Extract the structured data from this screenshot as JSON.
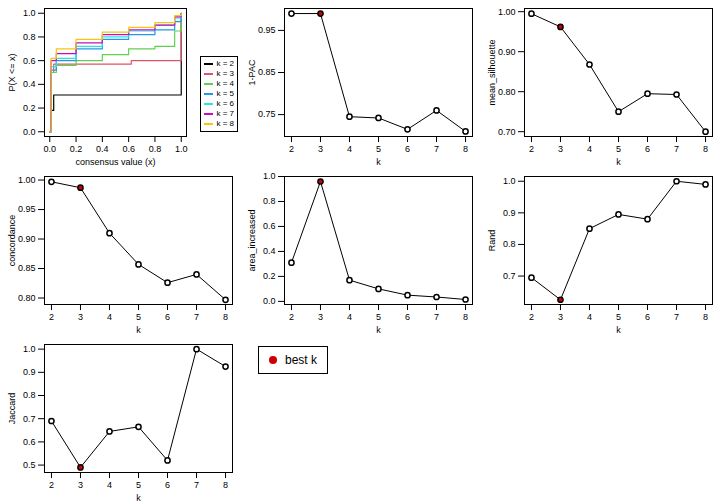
{
  "chart_data": [
    {
      "type": "line",
      "x_label": "consensus value (x)",
      "y_label": "P(X <= x)",
      "xlim": [
        -0.04,
        1.04
      ],
      "ylim": [
        -0.04,
        1.04
      ],
      "xticks": [
        {
          "value": 0,
          "label": "0.0"
        },
        0.2,
        0.4,
        0.6,
        0.8,
        {
          "value": 1,
          "label": "1.0"
        }
      ],
      "yticks": [
        {
          "value": 0,
          "label": "0.0"
        },
        0.2,
        0.4,
        0.6,
        0.8,
        {
          "value": 1,
          "label": "1.0"
        }
      ],
      "line_style": "step",
      "legend": "right",
      "series": [
        {
          "name": "k = 2",
          "color": "#000000",
          "x": [
            0,
            0.01,
            0.03,
            0.99,
            1
          ],
          "values": [
            0,
            0.18,
            0.31,
            0.31,
            1
          ]
        },
        {
          "name": "k = 3",
          "color": "#DF536B",
          "x": [
            0,
            0.01,
            0.03,
            0.6,
            0.62,
            0.99,
            1
          ],
          "values": [
            0,
            0.5,
            0.57,
            0.57,
            0.6,
            0.6,
            1
          ]
        },
        {
          "name": "k = 4",
          "color": "#61D04F",
          "x": [
            0,
            0.01,
            0.05,
            0.2,
            0.4,
            0.6,
            0.8,
            0.95,
            1
          ],
          "values": [
            0,
            0.5,
            0.56,
            0.6,
            0.65,
            0.7,
            0.72,
            0.85,
            1
          ]
        },
        {
          "name": "k = 5",
          "color": "#2297E6",
          "x": [
            0,
            0.01,
            0.05,
            0.2,
            0.4,
            0.6,
            0.8,
            0.95,
            1
          ],
          "values": [
            0,
            0.52,
            0.6,
            0.7,
            0.78,
            0.82,
            0.86,
            0.93,
            1
          ]
        },
        {
          "name": "k = 6",
          "color": "#28E2E5",
          "x": [
            0,
            0.01,
            0.05,
            0.2,
            0.4,
            0.6,
            0.8,
            0.95,
            1
          ],
          "values": [
            0,
            0.55,
            0.62,
            0.72,
            0.8,
            0.85,
            0.9,
            0.96,
            1
          ]
        },
        {
          "name": "k = 7",
          "color": "#CD0BBC",
          "x": [
            0,
            0.01,
            0.05,
            0.2,
            0.4,
            0.6,
            0.8,
            0.95,
            1
          ],
          "values": [
            0,
            0.6,
            0.66,
            0.75,
            0.82,
            0.86,
            0.9,
            0.97,
            1
          ]
        },
        {
          "name": "k = 8",
          "color": "#F5C710",
          "x": [
            0,
            0.01,
            0.05,
            0.2,
            0.4,
            0.6,
            0.8,
            0.95,
            1
          ],
          "values": [
            0,
            0.62,
            0.7,
            0.78,
            0.84,
            0.88,
            0.92,
            0.98,
            1
          ]
        }
      ]
    },
    {
      "type": "line",
      "x_label": "k",
      "y_label": "1-PAC",
      "x": [
        2,
        3,
        4,
        5,
        6,
        7,
        8
      ],
      "xlim": [
        1.76,
        8.24
      ],
      "xticks": [
        2,
        3,
        4,
        5,
        6,
        7,
        8
      ],
      "ylim": [
        0.698,
        1.002
      ],
      "yticks": [
        0.75,
        0.85,
        0.95
      ],
      "marker": "circle",
      "color": "#000000",
      "values": [
        0.99,
        0.99,
        0.745,
        0.742,
        0.715,
        0.76,
        0.71
      ],
      "colors": [
        "#FFFFFF",
        "#CC0000",
        "#FFFFFF",
        "#FFFFFF",
        "#FFFFFF",
        "#FFFFFF",
        "#FFFFFF"
      ]
    },
    {
      "type": "line",
      "x_label": "k",
      "y_label": "mean_silhouette",
      "x": [
        2,
        3,
        4,
        5,
        6,
        7,
        8
      ],
      "xlim": [
        1.76,
        8.24
      ],
      "xticks": [
        2,
        3,
        4,
        5,
        6,
        7,
        8
      ],
      "ylim": [
        0.688,
        1.008
      ],
      "yticks": [
        {
          "value": 0.7,
          "label": "0.70"
        },
        {
          "value": 0.8,
          "label": "0.80"
        },
        {
          "value": 0.9,
          "label": "0.90"
        },
        {
          "value": 1,
          "label": "1.00"
        }
      ],
      "marker": "circle",
      "color": "#000000",
      "values": [
        0.995,
        0.962,
        0.868,
        0.75,
        0.795,
        0.793,
        0.7
      ],
      "colors": [
        "#FFFFFF",
        "#CC0000",
        "#FFFFFF",
        "#FFFFFF",
        "#FFFFFF",
        "#FFFFFF",
        "#FFFFFF"
      ]
    },
    {
      "type": "line",
      "x_label": "k",
      "y_label": "concordance",
      "x": [
        2,
        3,
        4,
        5,
        6,
        7,
        8
      ],
      "xlim": [
        1.76,
        8.24
      ],
      "xticks": [
        2,
        3,
        4,
        5,
        6,
        7,
        8
      ],
      "ylim": [
        0.789,
        1.006
      ],
      "yticks": [
        {
          "value": 0.8,
          "label": "0.80"
        },
        0.85,
        {
          "value": 0.9,
          "label": "0.90"
        },
        0.95,
        {
          "value": 1,
          "label": "1.00"
        }
      ],
      "marker": "circle",
      "color": "#000000",
      "values": [
        0.997,
        0.987,
        0.91,
        0.857,
        0.826,
        0.84,
        0.797
      ],
      "colors": [
        "#FFFFFF",
        "#CC0000",
        "#FFFFFF",
        "#FFFFFF",
        "#FFFFFF",
        "#FFFFFF",
        "#FFFFFF"
      ]
    },
    {
      "type": "line",
      "x_label": "k",
      "y_label": "area_increased",
      "x": [
        2,
        3,
        4,
        5,
        6,
        7,
        8
      ],
      "xlim": [
        1.76,
        8.24
      ],
      "xticks": [
        2,
        3,
        4,
        5,
        6,
        7,
        8
      ],
      "ylim": [
        -0.025,
        1.0
      ],
      "yticks": [
        {
          "value": 0,
          "label": "0.0"
        },
        0.2,
        0.4,
        0.6,
        0.8,
        {
          "value": 1,
          "label": "1.0"
        }
      ],
      "marker": "circle",
      "color": "#000000",
      "values": [
        0.31,
        0.96,
        0.17,
        0.1,
        0.05,
        0.035,
        0.015
      ],
      "colors": [
        "#FFFFFF",
        "#CC0000",
        "#FFFFFF",
        "#FFFFFF",
        "#FFFFFF",
        "#FFFFFF",
        "#FFFFFF"
      ]
    },
    {
      "type": "line",
      "x_label": "k",
      "y_label": "Rand",
      "x": [
        2,
        3,
        4,
        5,
        6,
        7,
        8
      ],
      "xlim": [
        1.76,
        8.24
      ],
      "xticks": [
        2,
        3,
        4,
        5,
        6,
        7,
        8
      ],
      "ylim": [
        0.61,
        1.015
      ],
      "yticks": [
        0.7,
        0.8,
        0.9,
        {
          "value": 1,
          "label": "1.0"
        }
      ],
      "marker": "circle",
      "color": "#000000",
      "values": [
        0.695,
        0.625,
        0.85,
        0.895,
        0.88,
        1.0,
        0.99
      ],
      "colors": [
        "#FFFFFF",
        "#CC0000",
        "#FFFFFF",
        "#FFFFFF",
        "#FFFFFF",
        "#FFFFFF",
        "#FFFFFF"
      ]
    },
    {
      "type": "line",
      "x_label": "k",
      "y_label": "Jaccard",
      "x": [
        2,
        3,
        4,
        5,
        6,
        7,
        8
      ],
      "xlim": [
        1.76,
        8.24
      ],
      "xticks": [
        2,
        3,
        4,
        5,
        6,
        7,
        8
      ],
      "ylim": [
        0.468,
        1.02
      ],
      "yticks": [
        0.5,
        0.6,
        0.7,
        0.8,
        0.9,
        {
          "value": 1,
          "label": "1.0"
        }
      ],
      "marker": "circle",
      "color": "#000000",
      "values": [
        0.69,
        0.49,
        0.645,
        0.665,
        0.52,
        1.0,
        0.925
      ],
      "colors": [
        "#FFFFFF",
        "#CC0000",
        "#FFFFFF",
        "#FFFFFF",
        "#FFFFFF",
        "#FFFFFF",
        "#FFFFFF"
      ]
    },
    {
      "type": "legend",
      "series": [
        {
          "name": "best k",
          "color": "#CC0000",
          "marker": "circle"
        }
      ]
    }
  ]
}
